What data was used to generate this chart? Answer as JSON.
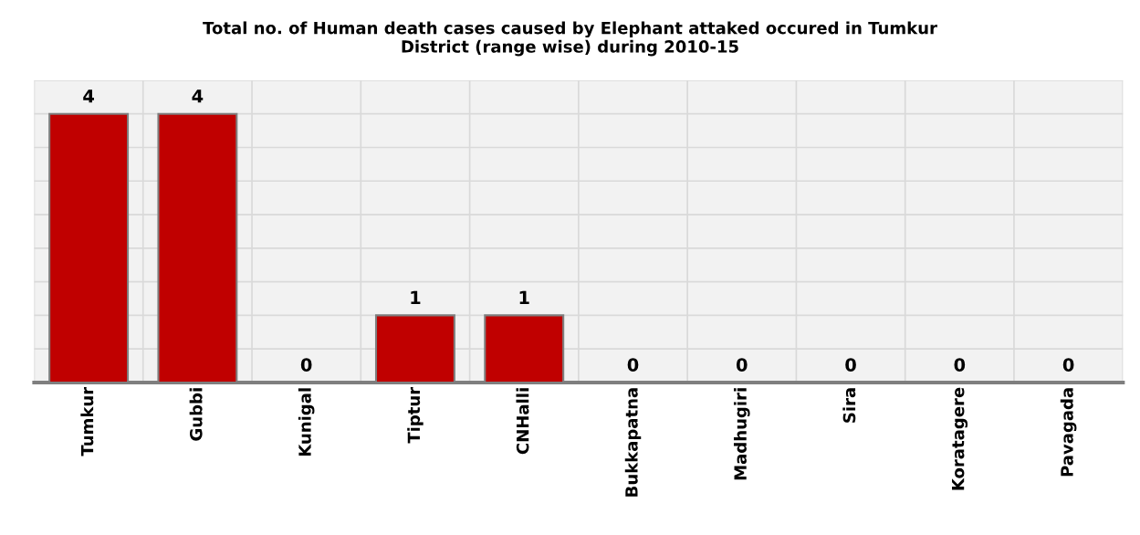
{
  "chart_data": {
    "type": "bar",
    "title": "Total no. of Human death cases caused by Elephant attaked occured in Tumkur\nDistrict (range wise) during 2010-15",
    "categories": [
      "Tumkur",
      "Gubbi",
      "Kunigal",
      "Tiptur",
      "CNHalli",
      "Bukkapatna",
      "Madhugiri",
      "Sira",
      "Koratagere",
      "Pavagada"
    ],
    "values": [
      4,
      4,
      0,
      1,
      1,
      0,
      0,
      0,
      0,
      0
    ],
    "color": "#c00000",
    "ylim": [
      0,
      4.5
    ],
    "yticks": [
      {
        "value": 0,
        "label": null
      },
      {
        "value": 0.5,
        "label": null
      },
      {
        "value": 1,
        "label": null
      },
      {
        "value": 1.5,
        "label": null
      },
      {
        "value": 2,
        "label": null
      },
      {
        "value": 2.5,
        "label": null
      },
      {
        "value": 3,
        "label": null
      },
      {
        "value": 3.5,
        "label": null
      },
      {
        "value": 4,
        "label": null
      },
      {
        "value": 4.5,
        "label": null
      }
    ],
    "grid": true,
    "tick_labels": "x",
    "data_labels": true
  }
}
